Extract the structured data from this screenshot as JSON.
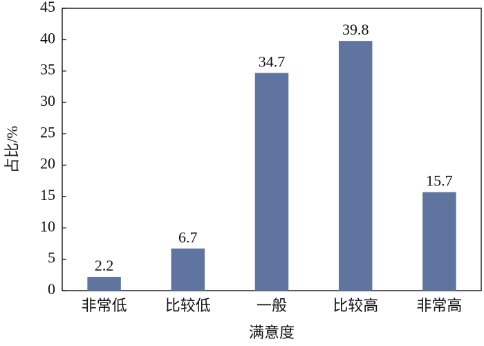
{
  "chart_data": {
    "type": "bar",
    "x_label": "满意度",
    "y_label": "占比/%",
    "categories": [
      "非常低",
      "比较低",
      "一般",
      "比较高",
      "非常高"
    ],
    "values": [
      2.2,
      6.7,
      34.7,
      39.8,
      15.7
    ],
    "color": "#5f749f",
    "ylim": [
      0,
      45
    ],
    "yticks": [
      0,
      5,
      10,
      15,
      20,
      25,
      30,
      35,
      40,
      45
    ],
    "grid": false
  }
}
